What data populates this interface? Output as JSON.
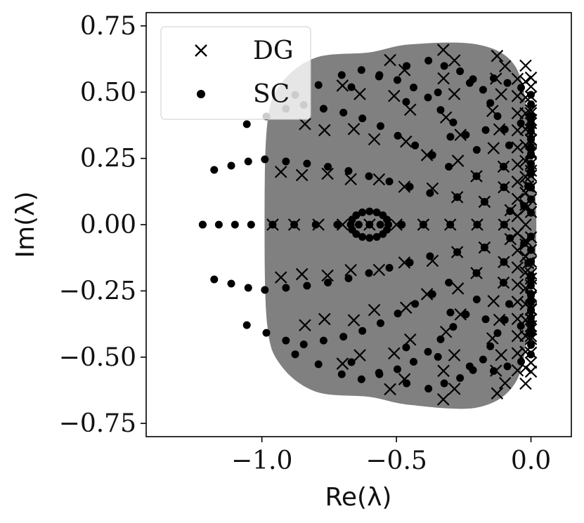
{
  "chart_data": {
    "type": "scatter",
    "xlabel": "Re(λ)",
    "ylabel": "Im(λ)",
    "xlim": [
      -1.43,
      0.15
    ],
    "ylim": [
      -0.8,
      0.8
    ],
    "xticks": [
      -1.0,
      -0.5,
      0.0
    ],
    "xtick_labels": [
      "−1.0",
      "−0.5",
      "0.0"
    ],
    "yticks": [
      0.75,
      0.5,
      0.25,
      0.0,
      -0.25,
      -0.5,
      -0.75
    ],
    "ytick_labels": [
      "0.75",
      "0.50",
      "0.25",
      "0.00",
      "−0.25",
      "−0.50",
      "−0.75"
    ],
    "grid": false,
    "legend": {
      "position": "top-left",
      "entries": [
        {
          "label": "DG",
          "marker": "x"
        },
        {
          "label": "SC",
          "marker": "o"
        }
      ]
    },
    "colors": {
      "markers": "#000000",
      "stability_region": "#808080",
      "legend_bg": "#ffffff"
    },
    "stability_region": {
      "fill": "gray",
      "boundary": [
        [
          -0.99,
          0.0
        ],
        [
          -0.98,
          0.38
        ],
        [
          -0.93,
          0.53
        ],
        [
          -0.8,
          0.63
        ],
        [
          -0.6,
          0.65
        ],
        [
          -0.45,
          0.68
        ],
        [
          -0.2,
          0.68
        ],
        [
          -0.06,
          0.6
        ],
        [
          -0.01,
          0.4
        ],
        [
          0.01,
          0.2
        ],
        [
          0.02,
          0.0
        ],
        [
          0.01,
          -0.2
        ],
        [
          -0.01,
          -0.4
        ],
        [
          -0.06,
          -0.6
        ],
        [
          -0.2,
          -0.69
        ],
        [
          -0.45,
          -0.68
        ],
        [
          -0.6,
          -0.65
        ],
        [
          -0.8,
          -0.63
        ],
        [
          -0.93,
          -0.53
        ],
        [
          -0.98,
          -0.38
        ]
      ]
    },
    "series": [
      {
        "name": "SC",
        "marker": "o",
        "arcs": [
          {
            "re_min": -1.22,
            "im_max": 0.0,
            "points": 1
          },
          {
            "re_min": -1.22,
            "re_center": -0.7,
            "radius": 0.52,
            "points": 13
          },
          {
            "re_min": -1.16,
            "re_center": -0.6,
            "radius": 0.56,
            "points": 13
          },
          {
            "re_min": -1.1,
            "re_center": -0.5,
            "radius": 0.6,
            "points": 13
          },
          {
            "re_min": -1.04,
            "re_center": -0.42,
            "radius": 0.62,
            "points": 13
          },
          {
            "re_min": -0.96,
            "re_center": -0.36,
            "radius": 0.6,
            "points": 13
          },
          {
            "re_min": -0.88,
            "re_center": -0.3,
            "radius": 0.58,
            "points": 13
          },
          {
            "re_min": -0.8,
            "re_center": -0.25,
            "radius": 0.55,
            "points": 13
          },
          {
            "re_min": -0.72,
            "re_center": -0.21,
            "radius": 0.51,
            "points": 13
          },
          {
            "re_min": -0.64,
            "re_center": -0.18,
            "radius": 0.46,
            "points": 13
          },
          {
            "re_min": -0.56,
            "re_center": -0.15,
            "radius": 0.41,
            "points": 13
          },
          {
            "re_min": -0.48,
            "re_center": -0.12,
            "radius": 0.36,
            "points": 13
          },
          {
            "re_min": -0.4,
            "re_center": -0.1,
            "radius": 0.3,
            "points": 13
          },
          {
            "re_min": -0.3,
            "re_center": -0.08,
            "radius": 0.22,
            "points": 11
          },
          {
            "re_min": -0.2,
            "re_center": -0.05,
            "radius": 0.15,
            "points": 9
          },
          {
            "re_min": -0.1,
            "re_center": -0.03,
            "radius": 0.07,
            "points": 7
          }
        ],
        "cluster": {
          "center": [
            -0.6,
            0.0
          ],
          "radius_re": 0.07,
          "radius_im": 0.05,
          "points": 16
        }
      },
      {
        "name": "DG",
        "marker": "x",
        "arcs": [
          {
            "re_min": -0.96,
            "re_center": -0.3,
            "radius": 0.66,
            "points": 17
          },
          {
            "re_min": -0.88,
            "re_center": -0.26,
            "radius": 0.62,
            "points": 17
          },
          {
            "re_min": -0.79,
            "re_center": -0.23,
            "radius": 0.56,
            "points": 15
          },
          {
            "re_min": -0.7,
            "re_center": -0.2,
            "radius": 0.5,
            "points": 15
          },
          {
            "re_min": -0.6,
            "re_center": -0.17,
            "radius": 0.43,
            "points": 13
          },
          {
            "re_min": -0.5,
            "re_center": -0.14,
            "radius": 0.36,
            "points": 13
          },
          {
            "re_min": -0.4,
            "re_center": -0.11,
            "radius": 0.29,
            "points": 11
          },
          {
            "re_min": -0.3,
            "re_center": -0.08,
            "radius": 0.22,
            "points": 11
          },
          {
            "re_min": -0.2,
            "re_center": -0.05,
            "radius": 0.15,
            "points": 9
          },
          {
            "re_min": -0.1,
            "re_center": -0.025,
            "radius": 0.075,
            "points": 7
          }
        ],
        "edge_columns": [
          {
            "re": -0.02,
            "im_min": -0.6,
            "im_max": 0.6,
            "points": 21
          },
          {
            "re": -0.05,
            "im_min": -0.55,
            "im_max": 0.55,
            "points": 18
          }
        ]
      }
    ]
  }
}
